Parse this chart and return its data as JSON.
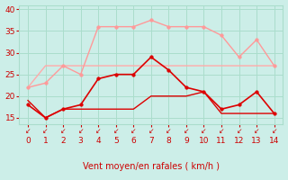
{
  "x": [
    0,
    1,
    2,
    3,
    4,
    5,
    6,
    7,
    8,
    9,
    10,
    11,
    12,
    13,
    14
  ],
  "line_dark_main": [
    18,
    15,
    17,
    18,
    24,
    25,
    25,
    29,
    26,
    22,
    21,
    17,
    18,
    21,
    16
  ],
  "line_dark_flat": [
    19,
    15,
    17,
    17,
    17,
    17,
    17,
    20,
    20,
    20,
    21,
    16,
    16,
    16,
    16
  ],
  "line_pink_upper": [
    22,
    23,
    27,
    25,
    36,
    36,
    36,
    37.5,
    36,
    36,
    36,
    34,
    29,
    33,
    27
  ],
  "line_pink_flat": [
    22,
    27,
    27,
    27,
    27,
    27,
    27,
    27,
    27,
    27,
    27,
    27,
    27,
    27,
    27
  ],
  "color_dark": "#dd0000",
  "color_pink": "#ff9999",
  "color_pink_flat": "#ffaaaa",
  "bg_color": "#cceee8",
  "grid_color": "#aaddcc",
  "text_color": "#cc0000",
  "xlabel": "Vent moyen/en rafales ( km/h )",
  "ylim": [
    13.5,
    41
  ],
  "xlim": [
    -0.5,
    14.5
  ],
  "yticks": [
    15,
    20,
    25,
    30,
    35,
    40
  ],
  "xticks": [
    0,
    1,
    2,
    3,
    4,
    5,
    6,
    7,
    8,
    9,
    10,
    11,
    12,
    13,
    14
  ]
}
